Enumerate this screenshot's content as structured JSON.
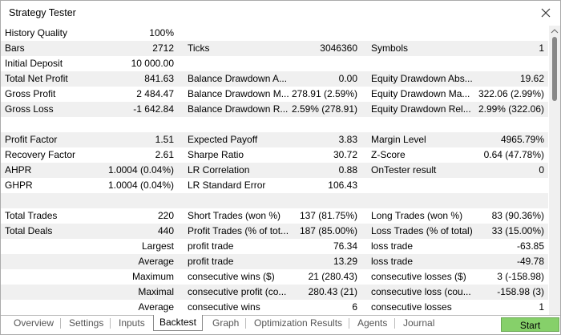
{
  "window": {
    "title": "Strategy Tester"
  },
  "rows": [
    [
      "History Quality",
      "100%"
    ],
    [
      "Bars",
      "2712",
      "Ticks",
      "3046360",
      "Symbols",
      "1"
    ],
    [
      "Initial Deposit",
      "10 000.00"
    ],
    [
      "Total Net Profit",
      "841.63",
      "Balance Drawdown A...",
      "0.00",
      "Equity Drawdown Abs...",
      "19.62"
    ],
    [
      "Gross Profit",
      "2 484.47",
      "Balance Drawdown M...",
      "278.91 (2.59%)",
      "Equity Drawdown Ma...",
      "322.06 (2.99%)"
    ],
    [
      "Gross Loss",
      "-1 642.84",
      "Balance Drawdown R...",
      "2.59% (278.91)",
      "Equity Drawdown Rel...",
      "2.99% (322.06)"
    ],
    [],
    [
      "Profit Factor",
      "1.51",
      "Expected Payoff",
      "3.83",
      "Margin Level",
      "4965.79%"
    ],
    [
      "Recovery Factor",
      "2.61",
      "Sharpe Ratio",
      "30.72",
      "Z-Score",
      "0.64 (47.78%)"
    ],
    [
      "AHPR",
      "1.0004 (0.04%)",
      "LR Correlation",
      "0.88",
      "OnTester result",
      "0"
    ],
    [
      "GHPR",
      "1.0004 (0.04%)",
      "LR Standard Error",
      "106.43"
    ],
    [],
    [
      "Total Trades",
      "220",
      "Short Trades (won %)",
      "137 (81.75%)",
      "Long Trades (won %)",
      "83 (90.36%)"
    ],
    [
      "Total Deals",
      "440",
      "Profit Trades (% of tot...",
      "187 (85.00%)",
      "Loss Trades (% of total)",
      "33 (15.00%)"
    ],
    [
      null,
      "Largest",
      "profit trade",
      "76.34",
      "loss trade",
      "-63.85"
    ],
    [
      null,
      "Average",
      "profit trade",
      "13.29",
      "loss trade",
      "-49.78"
    ],
    [
      null,
      "Maximum",
      "consecutive wins ($)",
      "21 (280.43)",
      "consecutive losses ($)",
      "3 (-158.98)"
    ],
    [
      null,
      "Maximal",
      "consecutive profit (co...",
      "280.43 (21)",
      "consecutive loss (cou...",
      "-158.98 (3)"
    ],
    [
      null,
      "Average",
      "consecutive wins",
      "6",
      "consecutive losses",
      "1"
    ]
  ],
  "tabs": [
    "Overview",
    "Settings",
    "Inputs",
    "Backtest",
    "Graph",
    "Optimization Results",
    "Agents",
    "Journal"
  ],
  "start_button": "Start"
}
